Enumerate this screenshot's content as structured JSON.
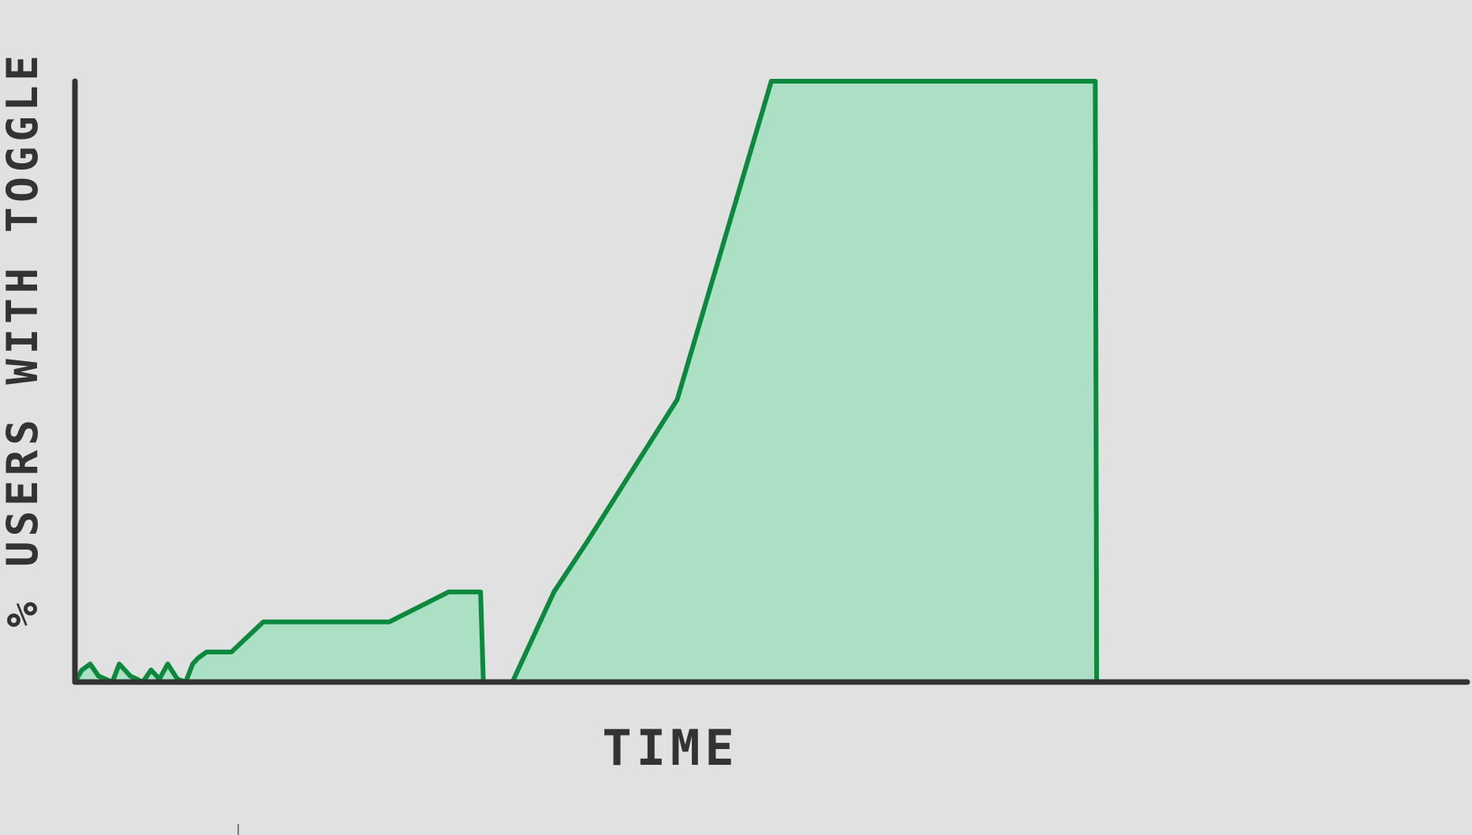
{
  "chart_data": {
    "type": "area",
    "style": "hand-drawn step area",
    "xlabel": "TIME",
    "ylabel": "% USERS WITH TOGGLE",
    "xlim": [
      0,
      100
    ],
    "ylim": [
      0,
      100
    ],
    "grid": false,
    "legend": "none",
    "series": [
      {
        "x": [
          0,
          0.5,
          1.1,
          1.7,
          2.7,
          3.2,
          4.0,
          4.9,
          5.5,
          6.1,
          6.7,
          7.4,
          8.0,
          8.5,
          8.9,
          9.5,
          10.2,
          10.9,
          11.3,
          13.6,
          22.7,
          27.0,
          29.3,
          29.5,
          31.6,
          34.6,
          36.9,
          43.5,
          50.3,
          57.2,
          73.7,
          73.8
        ],
        "y": [
          0,
          2,
          3,
          1,
          0,
          3,
          1,
          0,
          2,
          0.5,
          3,
          0.5,
          0,
          3,
          4,
          5,
          5,
          5,
          5,
          10,
          10,
          15,
          15,
          0,
          0,
          15,
          23,
          47,
          100,
          100,
          100,
          0
        ]
      }
    ],
    "colors": {
      "fill": "#abe0c4",
      "line": "#0b8a3e",
      "axis": "#333333",
      "background": "#e1e1e1"
    }
  }
}
